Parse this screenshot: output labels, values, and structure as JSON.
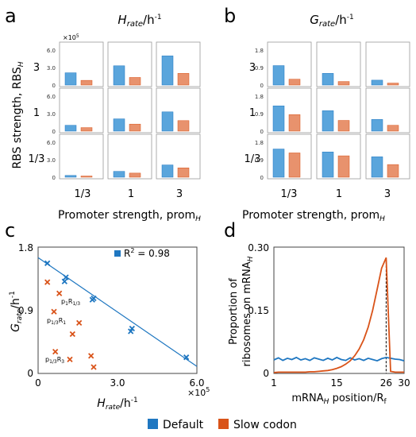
{
  "panels": {
    "a": {
      "letter": "a",
      "title_main": "H",
      "title_sub": "rate",
      "title_unit": "/h",
      "title_exp": "-1",
      "y_label_main": "RBS strength, RBS",
      "y_label_sub": "H",
      "x_label_main": "Promoter strength, prom",
      "x_label_sub": "H",
      "multiplier_base": "×10",
      "multiplier_exp": "5",
      "row_labels": [
        "3",
        "1",
        "1/3"
      ],
      "col_labels": [
        "1/3",
        "1",
        "3"
      ],
      "tick_labels": [
        "0",
        "3.0",
        "6.0"
      ]
    },
    "b": {
      "letter": "b",
      "title_main": "G",
      "title_sub": "rate",
      "title_unit": "/h",
      "title_exp": "-1",
      "x_label_main": "Promoter strength, prom",
      "x_label_sub": "H",
      "row_labels": [
        "3",
        "1",
        "1/3"
      ],
      "col_labels": [
        "1/3",
        "1",
        "3"
      ],
      "tick_labels": [
        "0",
        "0.9",
        "1.8"
      ]
    },
    "c": {
      "letter": "c",
      "y_label_main": "G",
      "y_label_sub": "rate",
      "y_label_unit": "/h",
      "y_label_exp": "-1",
      "x_label_main": "H",
      "x_label_sub": "rate",
      "x_label_unit": "/h",
      "x_label_exp": "-1",
      "x_ticks": [
        "0",
        "3.0",
        "6.0"
      ],
      "y_ticks": [
        "0",
        "0.9",
        "1.8"
      ],
      "multiplier_base": "×10",
      "multiplier_exp": "5",
      "legend_text": "R",
      "legend_exp": "2",
      "legend_value": " = 0.98",
      "annotations": [
        {
          "main": "p",
          "sub1": "1",
          "mid": "R",
          "sub2": "1/3"
        },
        {
          "main": "p",
          "sub1": "1/3",
          "mid": "R",
          "sub2": "1"
        },
        {
          "main": "p",
          "sub1": "1/3",
          "mid": "R",
          "sub2": "3"
        }
      ]
    },
    "d": {
      "letter": "d",
      "y_label_line1": "Proportion of",
      "y_label_line2_main": "ribosomes on mRNA",
      "y_label_line2_sub": "H",
      "x_label_main": "mRNA",
      "x_label_sub": "H",
      "x_label_rest": " position/R",
      "x_label_rest_sub": "f",
      "x_ticks": [
        "1",
        "15",
        "26",
        "30"
      ],
      "y_ticks": [
        "0",
        "0.15",
        "0.30"
      ]
    }
  },
  "legend": {
    "items": [
      {
        "label": "Default",
        "color": "#1f77c1"
      },
      {
        "label": "Slow codon",
        "color": "#d95319"
      }
    ]
  },
  "colors": {
    "blue_bar": "#5aa5dc",
    "orange_bar": "#e8926d",
    "blue": "#1f77c1",
    "orange": "#d95319"
  },
  "chart_data": [
    {
      "type": "bar",
      "title": "Hrate/h-1",
      "unit_multiplier": "×10^5",
      "ylim": [
        0,
        6.0
      ],
      "rows": [
        "3",
        "1",
        "1/3"
      ],
      "cols": [
        "1/3",
        "1",
        "3"
      ],
      "series": [
        {
          "name": "Default",
          "values": [
            [
              2.1,
              3.3,
              5.0
            ],
            [
              1.0,
              2.1,
              3.3
            ],
            [
              0.3,
              1.0,
              2.1
            ]
          ]
        },
        {
          "name": "Slow codon",
          "values": [
            [
              0.8,
              1.3,
              2.0
            ],
            [
              0.6,
              1.2,
              1.8
            ],
            [
              0.2,
              0.7,
              1.6
            ]
          ]
        }
      ]
    },
    {
      "type": "bar",
      "title": "Grate/h-1",
      "ylim": [
        0,
        1.8
      ],
      "rows": [
        "3",
        "1",
        "1/3"
      ],
      "cols": [
        "1/3",
        "1",
        "3"
      ],
      "series": [
        {
          "name": "Default",
          "values": [
            [
              1.0,
              0.6,
              0.25
            ],
            [
              1.3,
              1.05,
              0.6
            ],
            [
              1.45,
              1.3,
              1.05
            ]
          ]
        },
        {
          "name": "Slow codon",
          "values": [
            [
              0.3,
              0.18,
              0.1
            ],
            [
              0.85,
              0.55,
              0.3
            ],
            [
              1.25,
              1.1,
              0.65
            ]
          ]
        }
      ]
    },
    {
      "type": "scatter",
      "xlabel": "Hrate/h-1",
      "ylabel": "Grate/h-1",
      "xlim": [
        0,
        6.0
      ],
      "ylim": [
        0,
        1.8
      ],
      "x_multiplier": "×10^5",
      "series": [
        {
          "name": "Default",
          "points": [
            [
              0.35,
              1.57
            ],
            [
              1.05,
              1.37
            ],
            [
              1.0,
              1.31
            ],
            [
              2.1,
              1.07
            ],
            [
              2.05,
              1.05
            ],
            [
              3.55,
              0.64
            ],
            [
              3.5,
              0.6
            ],
            [
              5.6,
              0.23
            ]
          ]
        },
        {
          "name": "Slow codon",
          "points": [
            [
              0.35,
              1.3
            ],
            [
              0.8,
              1.14
            ],
            [
              0.6,
              0.88
            ],
            [
              1.55,
              0.72
            ],
            [
              1.3,
              0.56
            ],
            [
              0.65,
              0.31
            ],
            [
              2.0,
              0.25
            ],
            [
              1.2,
              0.2
            ],
            [
              2.1,
              0.09
            ]
          ]
        }
      ],
      "fit_line": {
        "x": [
          0,
          6.0
        ],
        "y": [
          1.65,
          0.1
        ]
      },
      "r_squared": 0.98
    },
    {
      "type": "line",
      "xlabel": "mRNAH position/Rf",
      "ylabel": "Proportion of ribosomes on mRNAH",
      "xlim": [
        1,
        30
      ],
      "ylim": [
        0,
        0.3
      ],
      "marker_x": 26,
      "series": [
        {
          "name": "Default",
          "x": [
            1,
            2,
            3,
            4,
            5,
            6,
            7,
            8,
            9,
            10,
            11,
            12,
            13,
            14,
            15,
            16,
            17,
            18,
            19,
            20,
            21,
            22,
            23,
            24,
            25,
            26,
            27,
            28,
            29,
            30
          ],
          "y": [
            0.032,
            0.037,
            0.031,
            0.036,
            0.033,
            0.038,
            0.032,
            0.035,
            0.031,
            0.037,
            0.034,
            0.031,
            0.036,
            0.032,
            0.038,
            0.033,
            0.031,
            0.037,
            0.032,
            0.035,
            0.031,
            0.036,
            0.033,
            0.03,
            0.035,
            0.038,
            0.036,
            0.034,
            0.033,
            0.03
          ]
        },
        {
          "name": "Slow codon",
          "x": [
            1,
            2,
            3,
            4,
            5,
            6,
            7,
            8,
            9,
            10,
            11,
            12,
            13,
            14,
            15,
            16,
            17,
            18,
            19,
            20,
            21,
            22,
            23,
            24,
            25,
            26,
            27,
            28,
            29,
            30
          ],
          "y": [
            0.002,
            0.003,
            0.003,
            0.003,
            0.003,
            0.003,
            0.003,
            0.003,
            0.004,
            0.004,
            0.005,
            0.006,
            0.007,
            0.009,
            0.012,
            0.016,
            0.022,
            0.03,
            0.042,
            0.058,
            0.08,
            0.11,
            0.15,
            0.2,
            0.25,
            0.275,
            0.005,
            0.003,
            0.003,
            0.003
          ]
        }
      ]
    }
  ]
}
